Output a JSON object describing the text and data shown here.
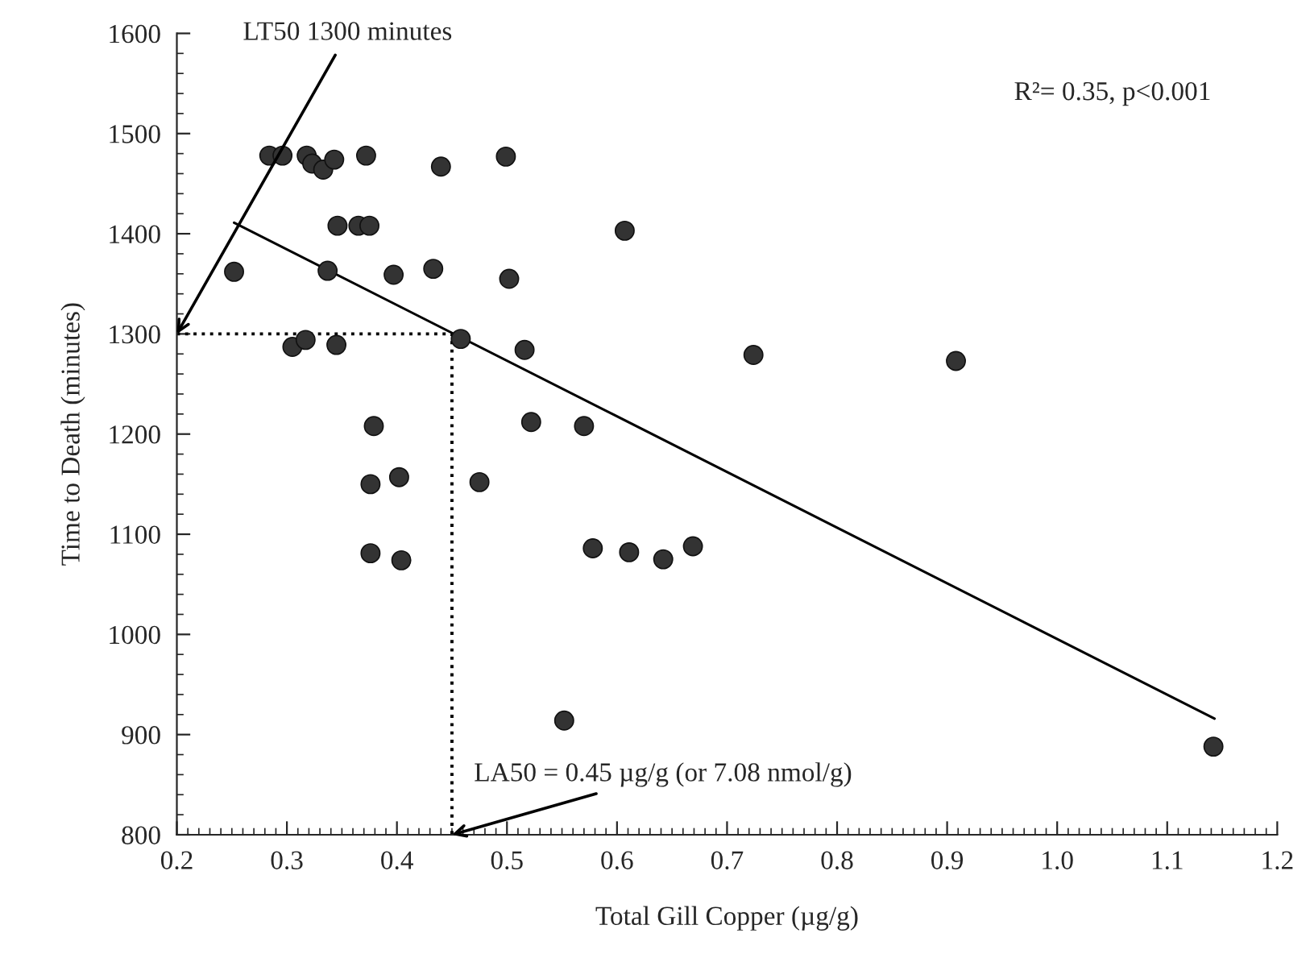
{
  "chart_data": {
    "type": "scatter",
    "xlabel": "Total Gill Copper (µg/g)",
    "ylabel": "Time to Death (minutes)",
    "xlim": [
      0.2,
      1.2
    ],
    "ylim": [
      800,
      1600
    ],
    "xticks": [
      {
        "value": 0.2,
        "label": "0.2"
      },
      {
        "value": 0.3,
        "label": "0.3"
      },
      {
        "value": 0.4,
        "label": "0.4"
      },
      {
        "value": 0.5,
        "label": "0.5"
      },
      {
        "value": 0.6,
        "label": "0.6"
      },
      {
        "value": 0.7,
        "label": "0.7"
      },
      {
        "value": 0.8,
        "label": "0.8"
      },
      {
        "value": 0.9,
        "label": "0.9"
      },
      {
        "value": 1.0,
        "label": "1.0"
      },
      {
        "value": 1.1,
        "label": "1.1"
      },
      {
        "value": 1.2,
        "label": "1.2"
      }
    ],
    "yticks": [
      800,
      900,
      1000,
      1100,
      1200,
      1300,
      1400,
      1500,
      1600
    ],
    "grid": false,
    "marker": "circle",
    "series": [
      {
        "color": "#333333",
        "x": [
          0.252,
          0.284,
          0.296,
          0.318,
          0.323,
          0.333,
          0.343,
          0.372,
          0.44,
          0.499,
          0.346,
          0.365,
          0.375,
          0.607,
          0.337,
          0.397,
          0.433,
          0.502,
          0.458,
          0.516,
          0.724,
          0.305,
          0.317,
          0.345,
          0.379,
          0.522,
          0.57,
          0.376,
          0.402,
          0.475,
          0.376,
          0.404,
          0.578,
          0.611,
          0.642,
          0.669,
          0.552,
          0.908,
          1.142
        ],
        "values": [
          1362,
          1478,
          1478,
          1478,
          1470,
          1464,
          1474,
          1478,
          1467,
          1477,
          1408,
          1408,
          1408,
          1403,
          1363,
          1359,
          1365,
          1355,
          1295,
          1284,
          1279,
          1287,
          1294,
          1289,
          1208,
          1212,
          1208,
          1150,
          1157,
          1152,
          1081,
          1074,
          1086,
          1082,
          1075,
          1088,
          914,
          1273,
          888
        ]
      },
      {
        "type": "line",
        "color": "#000000",
        "line_style": "solid",
        "marker": "none",
        "x": [
          0.252,
          1.143
        ],
        "values": [
          1411,
          916
        ]
      },
      {
        "type": "line",
        "color": "#000000",
        "line_style": "dotted",
        "marker": "none",
        "x": [
          0.2,
          0.45,
          0.45
        ],
        "values": [
          1300,
          1300,
          800
        ]
      }
    ],
    "annotations": [
      {
        "text": "LT50 1300 minutes",
        "x": 0.2,
        "y": 1300
      },
      {
        "text": "LA50 = 0.45 µg/g (or 7.08 nmol/g)",
        "x": 0.45,
        "y": 800
      },
      "R²= 0.35, p<0.001"
    ]
  }
}
